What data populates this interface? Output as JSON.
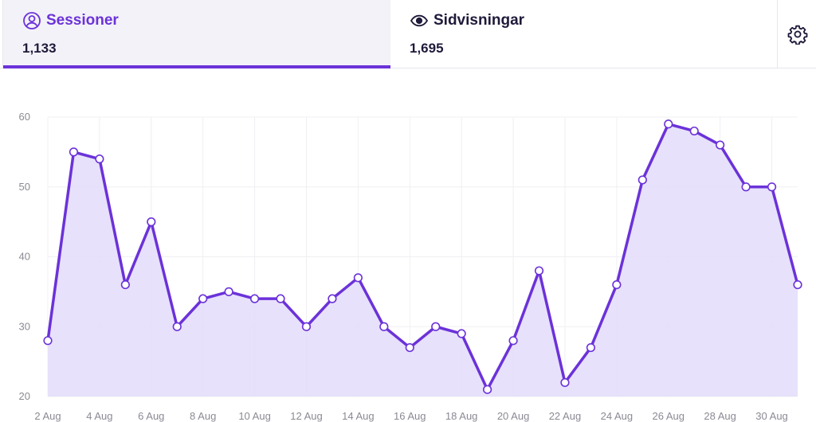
{
  "tabs": {
    "sessions": {
      "label": "Sessioner",
      "value": "1,133",
      "icon": "user-circle-icon"
    },
    "pageviews": {
      "label": "Sidvisningar",
      "value": "1,695",
      "icon": "eye-icon"
    },
    "settings": {
      "icon": "gear-icon"
    }
  },
  "colors": {
    "accent": "#6b32d9",
    "area_fill": "#e3dcfa",
    "grid": "#f0f0f4"
  },
  "chart_data": {
    "type": "area",
    "x": [
      "2 Aug",
      "3 Aug",
      "4 Aug",
      "5 Aug",
      "6 Aug",
      "7 Aug",
      "8 Aug",
      "9 Aug",
      "10 Aug",
      "11 Aug",
      "12 Aug",
      "13 Aug",
      "14 Aug",
      "15 Aug",
      "16 Aug",
      "17 Aug",
      "18 Aug",
      "19 Aug",
      "20 Aug",
      "21 Aug",
      "22 Aug",
      "23 Aug",
      "24 Aug",
      "25 Aug",
      "26 Aug",
      "27 Aug",
      "28 Aug",
      "29 Aug",
      "30 Aug",
      "31 Aug"
    ],
    "series": [
      {
        "values": [
          28,
          55,
          54,
          36,
          45,
          30,
          34,
          35,
          34,
          34,
          30,
          34,
          37,
          30,
          27,
          30,
          29,
          21,
          28,
          38,
          22,
          27,
          36,
          51,
          59,
          58,
          56,
          50,
          50,
          36
        ]
      }
    ],
    "x_tick_labels": [
      "2 Aug",
      "4 Aug",
      "6 Aug",
      "8 Aug",
      "10 Aug",
      "12 Aug",
      "14 Aug",
      "16 Aug",
      "18 Aug",
      "20 Aug",
      "22 Aug",
      "24 Aug",
      "26 Aug",
      "28 Aug",
      "30 Aug"
    ],
    "y_ticks": [
      20,
      30,
      40,
      50,
      60
    ],
    "ylim": [
      20,
      60
    ],
    "grid": true,
    "legend": "none"
  }
}
